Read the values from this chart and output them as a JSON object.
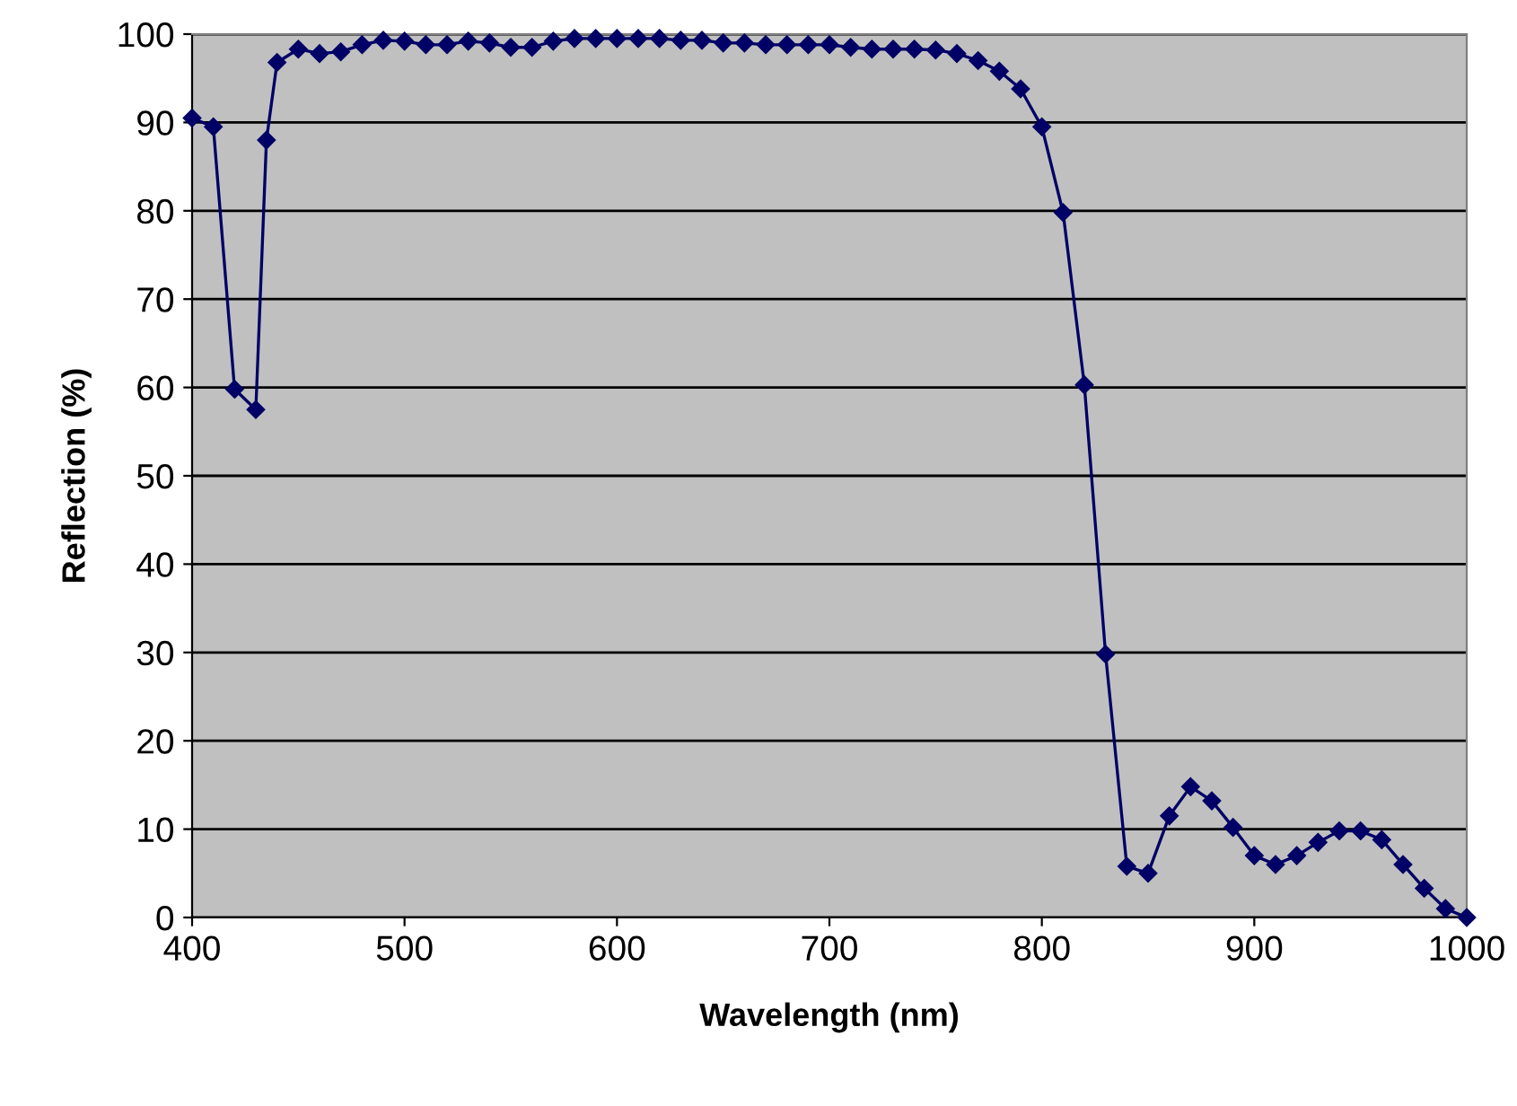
{
  "chart_data": {
    "type": "line",
    "xlabel": "Wavelength (nm)",
    "ylabel": "Reflection (%)",
    "xlim": [
      400,
      1000
    ],
    "xticks": [
      400,
      500,
      600,
      700,
      800,
      900,
      1000
    ],
    "ylim": [
      0,
      100
    ],
    "yticks": [
      0,
      10,
      20,
      30,
      40,
      50,
      60,
      70,
      80,
      90,
      100
    ],
    "grid": "y",
    "legend": false,
    "marker": "diamond",
    "line_style": "solid",
    "series": [
      {
        "color": "#000066",
        "x": [
          400,
          410,
          420,
          430,
          435,
          440,
          450,
          460,
          470,
          480,
          490,
          500,
          510,
          520,
          530,
          540,
          550,
          560,
          570,
          580,
          590,
          600,
          610,
          620,
          630,
          640,
          650,
          660,
          670,
          680,
          690,
          700,
          710,
          720,
          730,
          740,
          750,
          760,
          770,
          780,
          790,
          800,
          810,
          820,
          830,
          840,
          850,
          860,
          870,
          880,
          890,
          900,
          910,
          920,
          930,
          940,
          950,
          960,
          970,
          980,
          990,
          1000
        ],
        "values": [
          90.5,
          89.5,
          59.8,
          57.5,
          88,
          96.8,
          98.3,
          97.8,
          98,
          98.8,
          99.3,
          99.2,
          98.8,
          98.8,
          99.2,
          99,
          98.5,
          98.5,
          99.2,
          99.5,
          99.5,
          99.5,
          99.5,
          99.5,
          99.3,
          99.3,
          99,
          99,
          98.8,
          98.8,
          98.8,
          98.8,
          98.5,
          98.3,
          98.3,
          98.3,
          98.2,
          97.8,
          97,
          95.8,
          93.8,
          89.5,
          79.8,
          60.3,
          29.8,
          5.8,
          5,
          11.5,
          14.8,
          13.2,
          10.2,
          7,
          6,
          7,
          8.5,
          9.8,
          9.8,
          8.8,
          6,
          3.3,
          1,
          0
        ]
      }
    ]
  }
}
